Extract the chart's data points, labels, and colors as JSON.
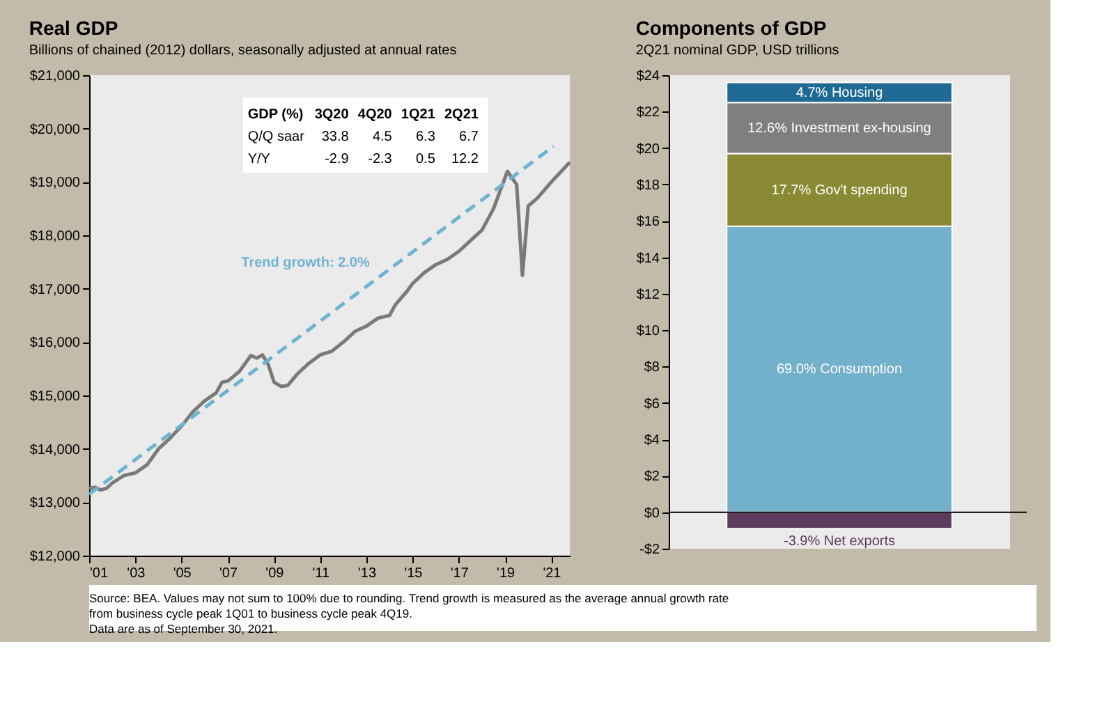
{
  "chart_data": [
    {
      "type": "line",
      "title": "Real GDP",
      "subtitle": "Billions of chained (2012) dollars, seasonally adjusted at annual rates",
      "x": [
        2001.0,
        2001.25,
        2001.5,
        2001.75,
        2002.0,
        2002.5,
        2003.0,
        2003.5,
        2004.0,
        2004.5,
        2005.0,
        2005.5,
        2006.0,
        2006.5,
        2006.75,
        2007.0,
        2007.5,
        2008.0,
        2008.25,
        2008.5,
        2008.75,
        2009.0,
        2009.3,
        2009.6,
        2010.0,
        2010.5,
        2011.0,
        2011.5,
        2012.0,
        2012.5,
        2013.0,
        2013.5,
        2014.0,
        2014.25,
        2014.75,
        2015.0,
        2015.5,
        2016.0,
        2016.5,
        2017.0,
        2017.5,
        2018.0,
        2018.5,
        2019.1,
        2019.5,
        2019.75,
        2020.0,
        2020.4,
        2021.0,
        2021.8
      ],
      "series": [
        {
          "name": null,
          "color": "#7a7a7a",
          "line_style": "solid",
          "values": [
            13260,
            13280,
            13230,
            13260,
            13360,
            13500,
            13550,
            13700,
            14000,
            14200,
            14430,
            14700,
            14900,
            15050,
            15250,
            15270,
            15450,
            15750,
            15700,
            15760,
            15580,
            15250,
            15170,
            15190,
            15400,
            15600,
            15760,
            15830,
            16000,
            16200,
            16300,
            16450,
            16500,
            16700,
            16950,
            17100,
            17300,
            17450,
            17550,
            17700,
            17900,
            18100,
            18500,
            19200,
            18950,
            17250,
            18550,
            18700,
            19000,
            19370
          ]
        },
        {
          "type": "line",
          "color": "#6fb3d2",
          "line_style": "dashed",
          "x": [
            2001.0,
            2021.1
          ],
          "values": [
            13150,
            19670
          ]
        }
      ],
      "xlim": [
        2001,
        2021.8
      ],
      "ylim": [
        12000,
        21000
      ],
      "xticks": [
        {
          "value": 2001,
          "label": "'01"
        },
        {
          "value": 2003,
          "label": "'03"
        },
        {
          "value": 2005,
          "label": "'05"
        },
        {
          "value": 2007,
          "label": "'07"
        },
        {
          "value": 2009,
          "label": "'09"
        },
        {
          "value": 2011,
          "label": "'11"
        },
        {
          "value": 2013,
          "label": "'13"
        },
        {
          "value": 2015,
          "label": "'15"
        },
        {
          "value": 2017,
          "label": "'17"
        },
        {
          "value": 2019,
          "label": "'19"
        },
        {
          "value": 2021,
          "label": "'21"
        }
      ],
      "yticks": [
        {
          "value": 12000,
          "label": "$12,000"
        },
        {
          "value": 13000,
          "label": "$13,000"
        },
        {
          "value": 14000,
          "label": "$14,000"
        },
        {
          "value": 15000,
          "label": "$15,000"
        },
        {
          "value": 16000,
          "label": "$16,000"
        },
        {
          "value": 17000,
          "label": "$17,000"
        },
        {
          "value": 18000,
          "label": "$18,000"
        },
        {
          "value": 19000,
          "label": "$19,000"
        },
        {
          "value": 20000,
          "label": "$20,000"
        },
        {
          "value": 21000,
          "label": "$21,000"
        }
      ],
      "grid": false,
      "marker": "none",
      "annotations": [
        "GDP (%)",
        "3Q20",
        "4Q20",
        "1Q21",
        "2Q21",
        "Q/Q saar",
        "33.8",
        "4.5",
        "6.3",
        "6.7",
        "Y/Y",
        "-2.9",
        "-2.3",
        "0.5",
        "12.2",
        "Trend growth: 2.0%",
        "Source: BEA. Values may not sum to 100% due to rounding. Trend growth is measured as the average annual growth rate",
        "from business cycle peak 1Q01 to business cycle peak 4Q19.",
        "Data are as of September 30, 2021."
      ]
    },
    {
      "type": "bar",
      "title": "Components of GDP",
      "subtitle": "2Q21 nominal GDP, USD trillions",
      "stacked": true,
      "categories": [
        null
      ],
      "series": [
        {
          "name": "69.0% Consumption",
          "color": "#72b0cb",
          "values": [
            15.7
          ]
        },
        {
          "name": "17.7% Gov't  spending",
          "color": "#8a8a34",
          "values": [
            4.0
          ]
        },
        {
          "name": "12.6% Investment ex-housing",
          "color": "#7f7f7f",
          "values": [
            2.8
          ]
        },
        {
          "name": "4.7% Housing",
          "color": "#1e6a94",
          "values": [
            1.1
          ]
        },
        {
          "name": "-3.9% Net exports",
          "color": "#5c3b5c",
          "values": [
            -0.9
          ]
        }
      ],
      "ylim": [
        -2,
        24
      ],
      "yticks": [
        {
          "value": -2,
          "label": "-$2"
        },
        {
          "value": 0,
          "label": "$0"
        },
        {
          "value": 2,
          "label": "$2"
        },
        {
          "value": 4,
          "label": "$4"
        },
        {
          "value": 6,
          "label": "$6"
        },
        {
          "value": 8,
          "label": "$8"
        },
        {
          "value": 10,
          "label": "$10"
        },
        {
          "value": 12,
          "label": "$12"
        },
        {
          "value": 14,
          "label": "$14"
        },
        {
          "value": 16,
          "label": "$16"
        },
        {
          "value": 18,
          "label": "$18"
        },
        {
          "value": 20,
          "label": "$20"
        },
        {
          "value": 22,
          "label": "$22"
        },
        {
          "value": 24,
          "label": "$24"
        }
      ],
      "tick_labels": "y",
      "grid": false,
      "ref_lines": [
        {
          "axis": "y",
          "value": 0,
          "color": "#000000",
          "line_style": "solid"
        }
      ]
    }
  ]
}
